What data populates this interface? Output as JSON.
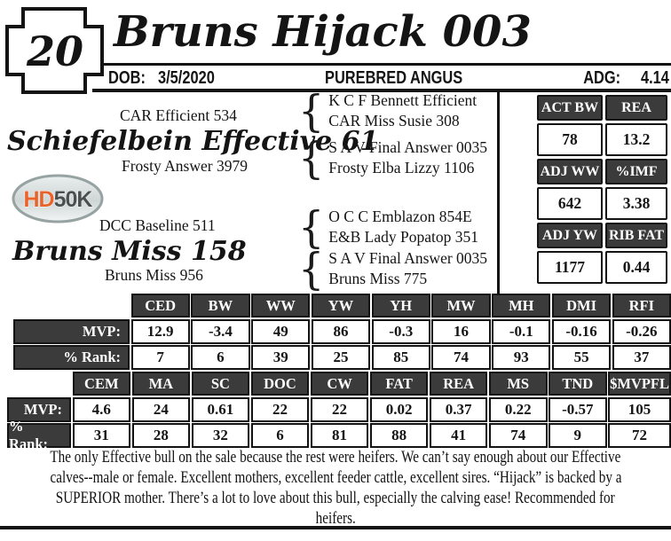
{
  "lot": {
    "number": "20"
  },
  "header": {
    "title": "Bruns Hijack 003",
    "dob_label": "DOB:",
    "dob_value": "3/5/2020",
    "breed": "PUREBRED ANGUS",
    "adg_label": "ADG:",
    "adg_value": "4.14"
  },
  "pedigree": {
    "sire": {
      "name": "Schiefelbein Effective 61",
      "sire": "CAR Efficient 534",
      "dam": "Frosty Answer 3979",
      "sire_parents": [
        "K C F Bennett Efficient",
        "CAR Miss Susie 308"
      ],
      "dam_parents": [
        "S A V Final Answer 0035",
        "Frosty Elba Lizzy 1106"
      ]
    },
    "dam": {
      "name": "Bruns Miss 158",
      "sire": "DCC Baseline 511",
      "dam": "Bruns Miss 956",
      "sire_parents": [
        "O C C Emblazon 854E",
        "E&B Lady Popatop 351"
      ],
      "dam_parents": [
        "S A V Final Answer 0035",
        "Bruns Miss 775"
      ]
    }
  },
  "logo": {
    "hd": "HD",
    "fifty_k": "50K",
    "orange": "#e8622a",
    "dark_gray": "#4a4f4f"
  },
  "stats": {
    "rows": [
      {
        "labels": [
          "ACT BW",
          "REA"
        ],
        "values": [
          "78",
          "13.2"
        ]
      },
      {
        "labels": [
          "ADJ WW",
          "%IMF"
        ],
        "values": [
          "642",
          "3.38"
        ]
      },
      {
        "labels": [
          "ADJ YW",
          "RIB FAT"
        ],
        "values": [
          "1177",
          "0.44"
        ]
      }
    ]
  },
  "epd_tables": [
    {
      "row_labels": [
        "MVP:",
        "% Rank:"
      ],
      "columns": [
        "CED",
        "BW",
        "WW",
        "YW",
        "YH",
        "MW",
        "MH",
        "DMI",
        "RFI"
      ],
      "mvp": [
        "12.9",
        "-3.4",
        "49",
        "86",
        "-0.3",
        "16",
        "-0.1",
        "-0.16",
        "-0.26"
      ],
      "rank": [
        "7",
        "6",
        "39",
        "25",
        "85",
        "74",
        "93",
        "55",
        "37"
      ]
    },
    {
      "row_labels": [
        "MVP:",
        "% Rank:"
      ],
      "columns": [
        "CEM",
        "MA",
        "SC",
        "DOC",
        "CW",
        "FAT",
        "REA",
        "MS",
        "TND",
        "$MVPFL"
      ],
      "mvp": [
        "4.6",
        "24",
        "0.61",
        "22",
        "22",
        "0.02",
        "0.37",
        "0.22",
        "-0.57",
        "105"
      ],
      "rank": [
        "31",
        "28",
        "32",
        "6",
        "81",
        "88",
        "41",
        "74",
        "9",
        "72"
      ]
    }
  ],
  "description": {
    "lines": [
      "The only Effective bull on the sale because the rest were heifers. We can’t say enough about our Effective",
      "calves--male or female. Excellent mothers, excellent feeder cattle, excellent sires. “Hijack” is backed by a",
      "SUPERIOR mother. There’s a lot to love about this bull, especially the calving ease! Recommended for",
      "heifers."
    ]
  },
  "colors": {
    "table_header": "#3b3b3b",
    "line": "#141414"
  }
}
